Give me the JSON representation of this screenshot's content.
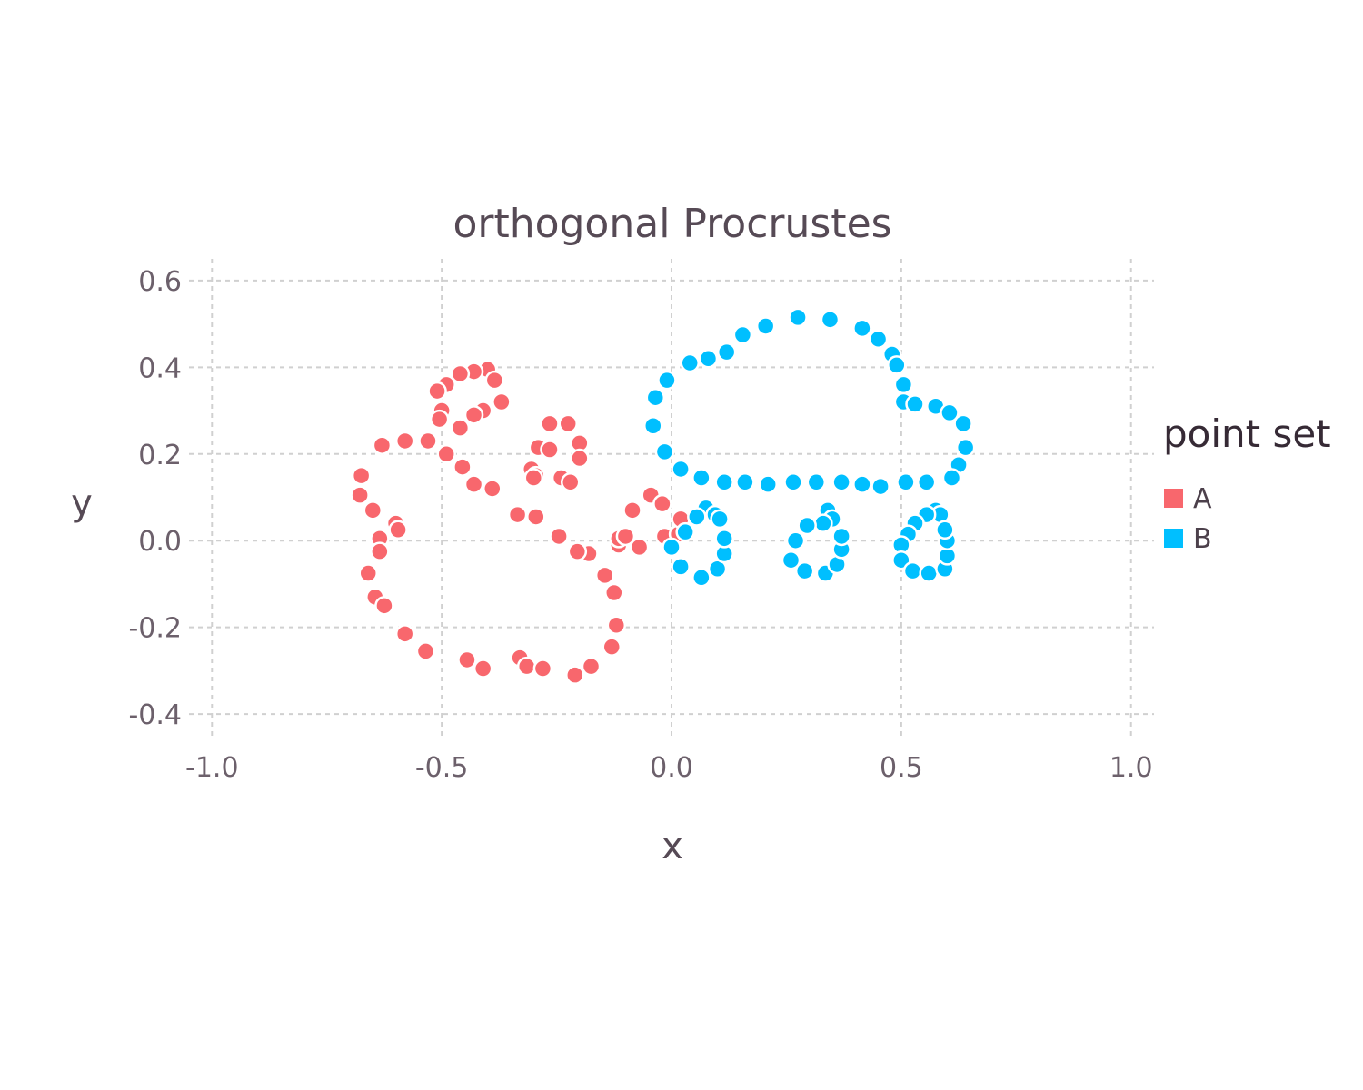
{
  "chart_data": {
    "type": "scatter",
    "title": "orthogonal Procrustes",
    "xlabel": "x",
    "ylabel": "y",
    "xlim": [
      -1.05,
      1.05
    ],
    "ylim": [
      -0.45,
      0.65
    ],
    "x_ticks": [
      -1.0,
      -0.5,
      0.0,
      0.5,
      1.0
    ],
    "x_tick_labels": [
      "-1.0",
      "-0.5",
      "0.0",
      "0.5",
      "1.0"
    ],
    "y_ticks": [
      -0.4,
      -0.2,
      0.0,
      0.2,
      0.4,
      0.6
    ],
    "y_tick_labels": [
      "-0.4",
      "-0.2",
      "0.0",
      "0.2",
      "0.4",
      "0.6"
    ],
    "grid": true,
    "legend": {
      "title": "point set",
      "position": "right"
    },
    "series": [
      {
        "name": "A",
        "color": "#f8676d",
        "points": [
          [
            -0.4,
            0.395
          ],
          [
            -0.43,
            0.39
          ],
          [
            -0.46,
            0.385
          ],
          [
            -0.49,
            0.36
          ],
          [
            -0.51,
            0.345
          ],
          [
            -0.385,
            0.37
          ],
          [
            -0.37,
            0.32
          ],
          [
            -0.41,
            0.3
          ],
          [
            -0.43,
            0.29
          ],
          [
            -0.46,
            0.26
          ],
          [
            -0.5,
            0.3
          ],
          [
            -0.505,
            0.28
          ],
          [
            -0.49,
            0.2
          ],
          [
            -0.455,
            0.17
          ],
          [
            -0.43,
            0.13
          ],
          [
            -0.39,
            0.12
          ],
          [
            -0.53,
            0.23
          ],
          [
            -0.58,
            0.23
          ],
          [
            -0.63,
            0.22
          ],
          [
            -0.675,
            0.15
          ],
          [
            -0.678,
            0.105
          ],
          [
            -0.65,
            0.07
          ],
          [
            -0.6,
            0.04
          ],
          [
            -0.595,
            0.025
          ],
          [
            -0.635,
            0.005
          ],
          [
            -0.635,
            -0.025
          ],
          [
            -0.66,
            -0.075
          ],
          [
            -0.645,
            -0.13
          ],
          [
            -0.625,
            -0.15
          ],
          [
            -0.58,
            -0.215
          ],
          [
            -0.535,
            -0.255
          ],
          [
            -0.445,
            -0.275
          ],
          [
            -0.41,
            -0.295
          ],
          [
            -0.33,
            -0.27
          ],
          [
            -0.315,
            -0.29
          ],
          [
            -0.28,
            -0.295
          ],
          [
            -0.21,
            -0.31
          ],
          [
            -0.175,
            -0.29
          ],
          [
            -0.13,
            -0.245
          ],
          [
            -0.12,
            -0.195
          ],
          [
            -0.125,
            -0.12
          ],
          [
            -0.145,
            -0.08
          ],
          [
            -0.18,
            -0.03
          ],
          [
            -0.205,
            -0.025
          ],
          [
            -0.245,
            0.01
          ],
          [
            -0.295,
            0.055
          ],
          [
            -0.335,
            0.06
          ],
          [
            -0.29,
            0.215
          ],
          [
            -0.265,
            0.27
          ],
          [
            -0.225,
            0.27
          ],
          [
            -0.2,
            0.225
          ],
          [
            -0.2,
            0.19
          ],
          [
            -0.265,
            0.21
          ],
          [
            -0.305,
            0.165
          ],
          [
            -0.295,
            0.15
          ],
          [
            -0.3,
            0.145
          ],
          [
            -0.24,
            0.145
          ],
          [
            -0.22,
            0.135
          ],
          [
            -0.115,
            -0.01
          ],
          [
            -0.115,
            0.005
          ],
          [
            -0.1,
            0.01
          ],
          [
            -0.085,
            0.07
          ],
          [
            -0.07,
            -0.015
          ],
          [
            -0.045,
            0.105
          ],
          [
            -0.02,
            0.085
          ],
          [
            -0.015,
            0.01
          ],
          [
            0.015,
            0.015
          ],
          [
            0.02,
            0.05
          ]
        ]
      },
      {
        "name": "B",
        "color": "#00bfff",
        "points": [
          [
            0.275,
            0.515
          ],
          [
            0.345,
            0.51
          ],
          [
            0.415,
            0.49
          ],
          [
            0.45,
            0.465
          ],
          [
            0.48,
            0.43
          ],
          [
            0.49,
            0.405
          ],
          [
            0.505,
            0.36
          ],
          [
            0.505,
            0.32
          ],
          [
            0.53,
            0.315
          ],
          [
            0.575,
            0.31
          ],
          [
            0.605,
            0.295
          ],
          [
            0.635,
            0.27
          ],
          [
            0.64,
            0.215
          ],
          [
            0.625,
            0.175
          ],
          [
            0.61,
            0.145
          ],
          [
            0.555,
            0.135
          ],
          [
            0.51,
            0.135
          ],
          [
            0.455,
            0.125
          ],
          [
            0.415,
            0.13
          ],
          [
            0.37,
            0.135
          ],
          [
            0.315,
            0.135
          ],
          [
            0.265,
            0.135
          ],
          [
            0.21,
            0.13
          ],
          [
            0.16,
            0.135
          ],
          [
            0.115,
            0.135
          ],
          [
            0.065,
            0.145
          ],
          [
            0.02,
            0.165
          ],
          [
            -0.015,
            0.205
          ],
          [
            -0.04,
            0.265
          ],
          [
            -0.035,
            0.33
          ],
          [
            -0.01,
            0.37
          ],
          [
            0.04,
            0.41
          ],
          [
            0.08,
            0.42
          ],
          [
            0.12,
            0.435
          ],
          [
            0.155,
            0.475
          ],
          [
            0.205,
            0.495
          ],
          [
            0.075,
            0.075
          ],
          [
            0.095,
            0.06
          ],
          [
            0.105,
            0.05
          ],
          [
            0.055,
            0.055
          ],
          [
            0.03,
            0.02
          ],
          [
            0.0,
            -0.015
          ],
          [
            0.02,
            -0.06
          ],
          [
            0.065,
            -0.085
          ],
          [
            0.1,
            -0.065
          ],
          [
            0.115,
            -0.03
          ],
          [
            0.115,
            0.005
          ],
          [
            0.34,
            0.07
          ],
          [
            0.35,
            0.05
          ],
          [
            0.33,
            0.04
          ],
          [
            0.295,
            0.035
          ],
          [
            0.27,
            0.0
          ],
          [
            0.26,
            -0.045
          ],
          [
            0.29,
            -0.07
          ],
          [
            0.335,
            -0.075
          ],
          [
            0.36,
            -0.055
          ],
          [
            0.37,
            -0.02
          ],
          [
            0.37,
            0.01
          ],
          [
            0.575,
            0.07
          ],
          [
            0.585,
            0.06
          ],
          [
            0.555,
            0.06
          ],
          [
            0.53,
            0.04
          ],
          [
            0.515,
            0.015
          ],
          [
            0.5,
            -0.01
          ],
          [
            0.5,
            -0.045
          ],
          [
            0.525,
            -0.07
          ],
          [
            0.56,
            -0.075
          ],
          [
            0.595,
            -0.065
          ],
          [
            0.6,
            -0.035
          ],
          [
            0.6,
            0.0
          ],
          [
            0.595,
            0.025
          ]
        ]
      }
    ]
  }
}
